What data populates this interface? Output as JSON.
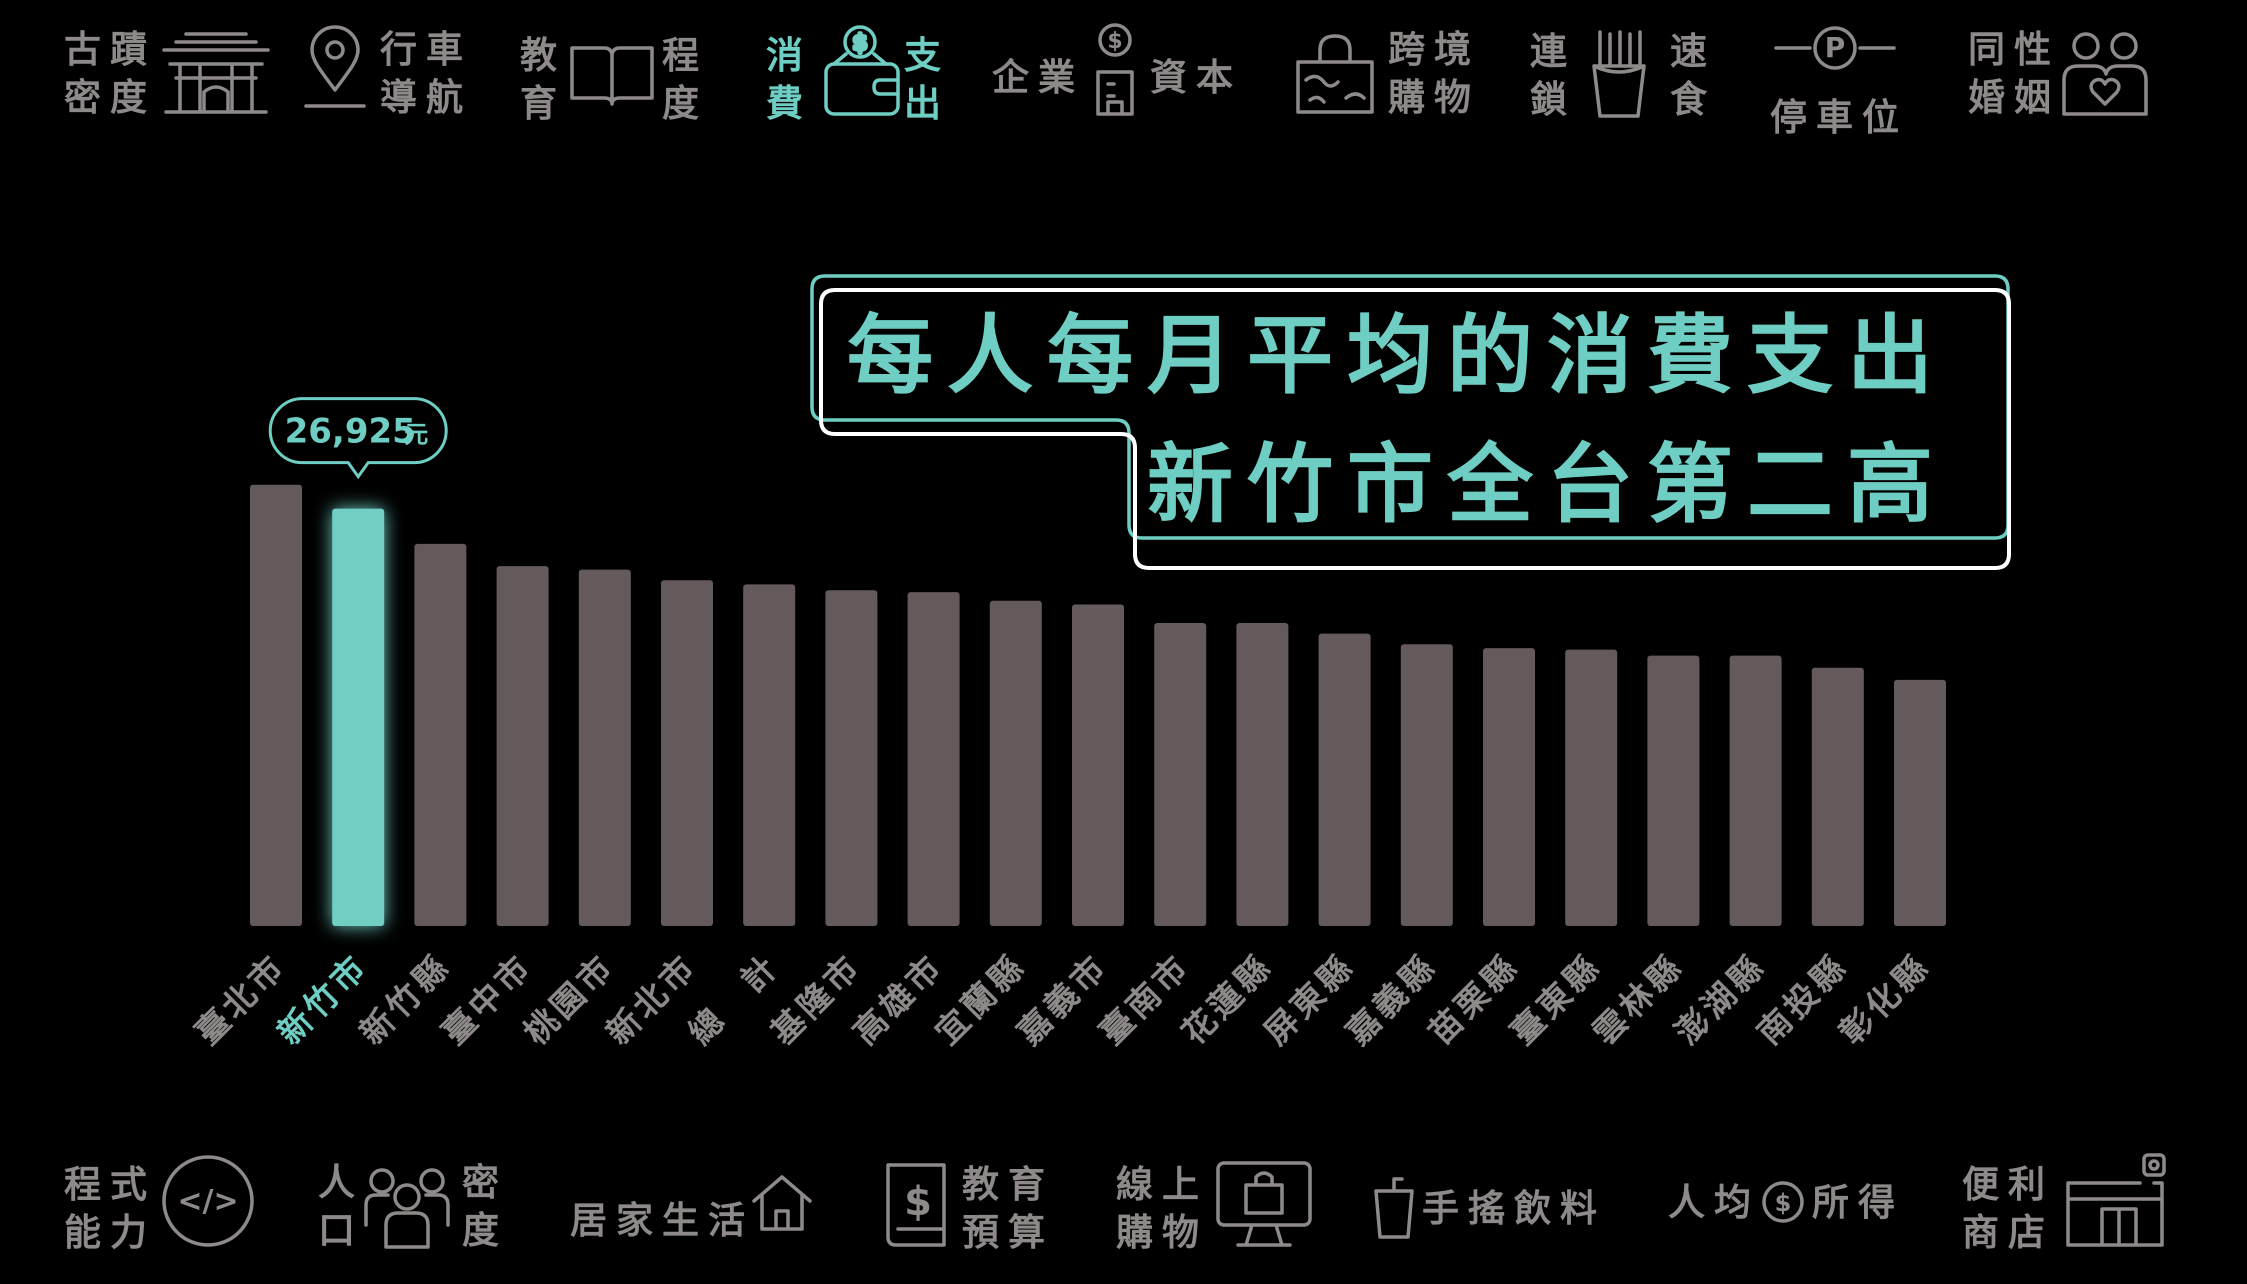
{
  "nav_top": [
    {
      "id": "heritage",
      "label_lines": [
        "古蹟",
        "密度"
      ],
      "icon": "temple-gate-icon"
    },
    {
      "id": "navigation",
      "label_lines": [
        "行車",
        "導航"
      ],
      "icon": "map-pin-icon"
    },
    {
      "id": "education",
      "label_left": [
        "教",
        "育"
      ],
      "label_right": [
        "程",
        "度"
      ],
      "icon": "open-book-icon"
    },
    {
      "id": "consumption",
      "label_left": [
        "消",
        "費"
      ],
      "label_right": [
        "支",
        "出"
      ],
      "icon": "wallet-icon",
      "icon_glyph": "$",
      "active": true
    },
    {
      "id": "enterprise",
      "label_left": [
        "企業"
      ],
      "label_right": [
        "資本"
      ],
      "icon": "building-dollar-icon",
      "icon_glyph": "$"
    },
    {
      "id": "crossborder",
      "label_lines": [
        "跨境",
        "購物"
      ],
      "icon": "world-bag-icon"
    },
    {
      "id": "fastfood",
      "label_left": [
        "連",
        "鎖"
      ],
      "label_right": [
        "速",
        "食"
      ],
      "icon": "french-fries-icon"
    },
    {
      "id": "parking",
      "label_lines": [
        "停車位"
      ],
      "icon": "parking-sign-icon",
      "icon_glyph": "P"
    },
    {
      "id": "samesex",
      "label_lines": [
        "同性",
        "婚姻"
      ],
      "icon": "couple-heart-icon"
    }
  ],
  "nav_bottom": [
    {
      "id": "coding",
      "label_lines": [
        "程式",
        "能力"
      ],
      "icon": "code-circle-icon",
      "icon_glyph": "</>"
    },
    {
      "id": "population",
      "label_left": [
        "人",
        "口"
      ],
      "label_right": [
        "密",
        "度"
      ],
      "icon": "people-group-icon"
    },
    {
      "id": "home",
      "label_lines": [
        "居家生活"
      ],
      "icon": "house-icon"
    },
    {
      "id": "edubudget",
      "label_lines": [
        "教育",
        "預算"
      ],
      "icon": "budget-book-icon",
      "icon_glyph": "$"
    },
    {
      "id": "onlineshop",
      "label_lines": [
        "線上",
        "購物"
      ],
      "icon": "monitor-bag-icon"
    },
    {
      "id": "drinks",
      "label_lines": [
        "手搖飲料"
      ],
      "icon": "drink-cup-icon"
    },
    {
      "id": "income",
      "label_pre": "人均",
      "label_post": "所得",
      "icon": "coin-dollar-icon",
      "icon_glyph": "$"
    },
    {
      "id": "convenience",
      "label_lines": [
        "便利",
        "商店"
      ],
      "icon": "convenience-store-icon"
    }
  ],
  "headline": {
    "line1": "每人每月平均的消費支出",
    "line2": "新竹市全台第二高"
  },
  "colors": {
    "accent": "#6fcec3",
    "bar": "#645a5c",
    "muted_text": "#8f8a8a",
    "background": "#000000"
  },
  "chart_data": {
    "type": "bar",
    "title": "",
    "xlabel": "",
    "ylabel": "",
    "ylim": [
      0,
      28000
    ],
    "grid": false,
    "highlight_index": 1,
    "highlight_label_value": "26,925",
    "highlight_label_unit": "元",
    "categories": [
      "臺北市",
      "新竹市",
      "新竹縣",
      "臺中市",
      "桃園市",
      "新北市",
      "總　計",
      "基隆市",
      "高雄市",
      "宜蘭縣",
      "嘉義市",
      "臺南市",
      "花蓮縣",
      "屏東縣",
      "嘉義縣",
      "苗栗縣",
      "臺東縣",
      "雲林縣",
      "澎湖縣",
      "南投縣",
      "彰化縣"
    ],
    "values": [
      28470,
      26925,
      24650,
      23220,
      22990,
      22310,
      22040,
      21660,
      21540,
      20980,
      20740,
      19550,
      19550,
      18860,
      18180,
      17930,
      17830,
      17440,
      17440,
      16660,
      15880
    ]
  }
}
